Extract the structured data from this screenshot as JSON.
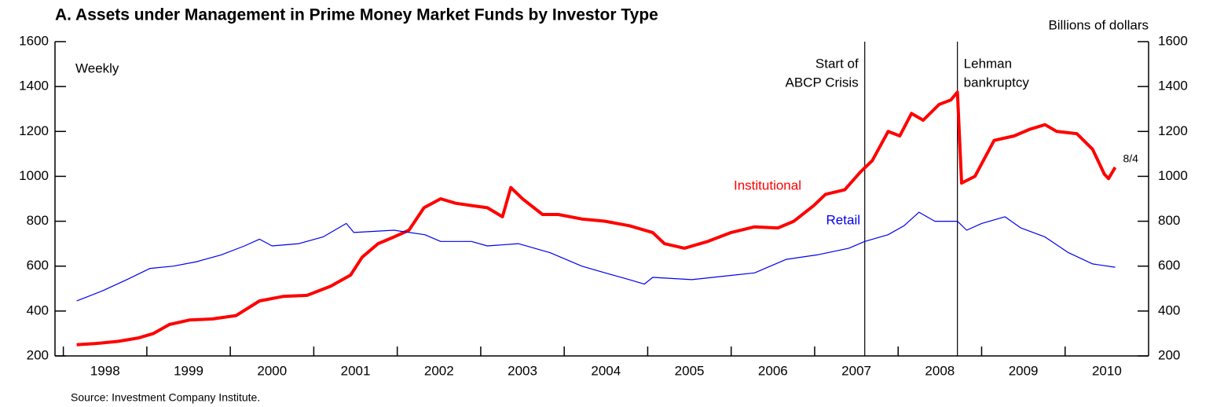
{
  "chart_data": {
    "type": "line",
    "title": "A. Assets under Management in Prime Money Market Funds by Investor Type",
    "y_axis_label": "Billions of dollars",
    "frequency_note": "Weekly",
    "source": "Source: Investment Company Institute.",
    "end_label": "8/4",
    "xlim": [
      1997.9,
      2011
    ],
    "xticks": [
      1998,
      1999,
      2000,
      2001,
      2002,
      2003,
      2004,
      2005,
      2006,
      2007,
      2008,
      2009,
      2010
    ],
    "ylim": [
      200,
      1600
    ],
    "yticks": [
      200,
      400,
      600,
      800,
      1000,
      1200,
      1400,
      1600
    ],
    "events": [
      {
        "x": 2007.6,
        "label": [
          "Start of",
          "ABCP Crisis"
        ]
      },
      {
        "x": 2008.71,
        "label": [
          "Lehman",
          "bankruptcy"
        ]
      }
    ],
    "series": [
      {
        "name": "Institutional",
        "color": "#ff0000",
        "x": [
          1998.16,
          1998.38,
          1998.66,
          1998.9,
          1999.08,
          1999.27,
          1999.51,
          1999.79,
          2000.07,
          2000.35,
          2000.63,
          2000.92,
          2001.2,
          2001.44,
          2001.58,
          2001.77,
          2001.96,
          2002.14,
          2002.32,
          2002.52,
          2002.7,
          2002.89,
          2003.08,
          2003.26,
          2003.36,
          2003.5,
          2003.74,
          2003.93,
          2004.21,
          2004.49,
          2004.78,
          2005.06,
          2005.2,
          2005.44,
          2005.72,
          2006.0,
          2006.28,
          2006.56,
          2006.75,
          2006.99,
          2007.13,
          2007.36,
          2007.55,
          2007.69,
          2007.88,
          2008.02,
          2008.16,
          2008.3,
          2008.49,
          2008.63,
          2008.71,
          2008.76,
          2008.92,
          2009.15,
          2009.39,
          2009.58,
          2009.76,
          2009.9,
          2010.14,
          2010.33,
          2010.47,
          2010.52,
          2010.6
        ],
        "values": [
          250,
          255,
          265,
          280,
          300,
          340,
          360,
          365,
          380,
          445,
          465,
          470,
          510,
          560,
          640,
          700,
          730,
          760,
          860,
          900,
          880,
          870,
          860,
          820,
          950,
          900,
          830,
          830,
          810,
          800,
          780,
          750,
          700,
          680,
          710,
          750,
          775,
          770,
          800,
          870,
          920,
          940,
          1020,
          1070,
          1200,
          1180,
          1280,
          1250,
          1320,
          1340,
          1375,
          970,
          1000,
          1160,
          1180,
          1210,
          1230,
          1200,
          1190,
          1120,
          1010,
          990,
          1040
        ]
      },
      {
        "name": "Retail",
        "color": "#0000ee",
        "x": [
          1998.16,
          1998.47,
          1998.76,
          1999.04,
          1999.32,
          1999.6,
          1999.89,
          2000.17,
          2000.35,
          2000.5,
          2000.82,
          2001.11,
          2001.39,
          2001.48,
          2001.96,
          2002.33,
          2002.52,
          2002.89,
          2003.08,
          2003.45,
          2003.83,
          2004.21,
          2004.49,
          2004.78,
          2004.96,
          2005.06,
          2005.53,
          2005.9,
          2006.28,
          2006.66,
          2007.03,
          2007.41,
          2007.6,
          2007.88,
          2008.07,
          2008.25,
          2008.44,
          2008.71,
          2008.82,
          2009.0,
          2009.28,
          2009.47,
          2009.76,
          2010.04,
          2010.33,
          2010.6
        ],
        "values": [
          445,
          490,
          540,
          590,
          600,
          620,
          650,
          690,
          720,
          690,
          700,
          730,
          790,
          750,
          760,
          740,
          710,
          710,
          690,
          700,
          660,
          600,
          570,
          540,
          520,
          550,
          540,
          555,
          570,
          630,
          650,
          680,
          710,
          740,
          780,
          840,
          800,
          800,
          760,
          790,
          820,
          770,
          730,
          660,
          610,
          595
        ]
      }
    ]
  }
}
